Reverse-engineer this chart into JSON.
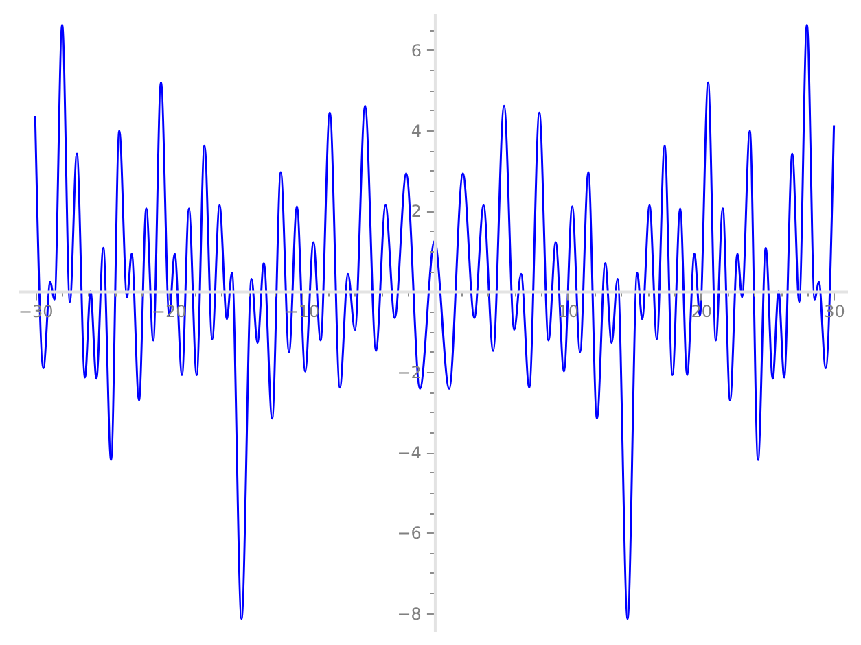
{
  "chart_data": {
    "type": "line",
    "x": [
      -30,
      -29.38,
      -28.87,
      -28.55,
      -27.97,
      -27.39,
      -26.87,
      -26.26,
      -25.84,
      -25.4,
      -24.88,
      -24.3,
      -23.68,
      -23.1,
      -22.75,
      -22.2,
      -21.65,
      -21.13,
      -20.55,
      -19.93,
      -19.52,
      -18.97,
      -18.45,
      -17.87,
      -17.28,
      -16.7,
      -16.15,
      -15.6,
      -15.22,
      -14.5,
      -13.75,
      -13.3,
      -12.82,
      -12.2,
      -11.55,
      -10.93,
      -10.34,
      -9.72,
      -9.1,
      -8.56,
      -7.87,
      -7.11,
      -6.5,
      -5.98,
      -5.22,
      -4.4,
      -3.68,
      -2.99,
      -2.13,
      -1.1,
      0,
      1.1,
      2.13,
      2.99,
      3.68,
      4.4,
      5.22,
      5.98,
      6.5,
      7.11,
      7.87,
      8.56,
      9.1,
      9.72,
      10.34,
      10.93,
      11.55,
      12.2,
      12.82,
      13.3,
      13.75,
      14.5,
      15.22,
      15.6,
      16.15,
      16.7,
      17.28,
      17.87,
      18.45,
      18.97,
      19.52,
      19.93,
      20.55,
      21.13,
      21.65,
      22.2,
      22.75,
      23.1,
      23.68,
      24.3,
      24.88,
      25.4,
      25.84,
      26.26,
      26.87,
      27.39,
      27.97,
      28.55,
      28.87,
      29.38,
      30
    ],
    "series": [
      {
        "color": "#0000ff",
        "values": [
          4.36,
          -1.91,
          0.23,
          -0.2,
          6.62,
          -0.26,
          3.42,
          -2.14,
          0.0,
          -2.17,
          1.08,
          -4.19,
          3.99,
          -0.15,
          0.94,
          -2.71,
          2.06,
          -1.22,
          5.19,
          -0.6,
          0.94,
          -2.08,
          2.06,
          -2.08,
          3.62,
          -1.19,
          2.14,
          -0.69,
          0.46,
          -8.14,
          0.31,
          -1.28,
          0.7,
          -3.16,
          2.96,
          -1.51,
          2.11,
          -1.99,
          1.22,
          -1.22,
          4.44,
          -2.39,
          0.43,
          -0.96,
          4.61,
          -1.48,
          2.14,
          -0.66,
          2.93,
          -2.42,
          1.25,
          -2.42,
          2.93,
          -0.66,
          2.14,
          -1.48,
          4.61,
          -0.96,
          0.43,
          -2.39,
          4.44,
          -1.22,
          1.22,
          -1.99,
          2.11,
          -1.51,
          2.96,
          -3.16,
          0.7,
          -1.28,
          0.31,
          -8.14,
          0.46,
          -0.69,
          2.14,
          -1.19,
          3.62,
          -2.08,
          2.06,
          -2.08,
          0.94,
          -0.6,
          5.19,
          -1.22,
          2.06,
          -2.71,
          0.94,
          -0.15,
          3.99,
          -4.19,
          1.08,
          -2.17,
          0.0,
          -2.14,
          3.42,
          -0.26,
          6.62,
          -0.2,
          0.23,
          -1.91,
          4.13
        ]
      }
    ],
    "xlim": [
      -31.3,
      31.0
    ],
    "ylim": [
      -8.45,
      6.9
    ],
    "xticks": [
      -30,
      {
        "value": -28,
        "label": null
      },
      {
        "value": -26,
        "label": null
      },
      {
        "value": -24,
        "label": null
      },
      {
        "value": -22,
        "label": null
      },
      -20,
      {
        "value": -18,
        "label": null
      },
      {
        "value": -16,
        "label": null
      },
      {
        "value": -14,
        "label": null
      },
      {
        "value": -12,
        "label": null
      },
      -10,
      {
        "value": -8,
        "label": null
      },
      {
        "value": -6,
        "label": null
      },
      {
        "value": -4,
        "label": null
      },
      {
        "value": -2,
        "label": null
      },
      {
        "value": 2,
        "label": null
      },
      {
        "value": 4,
        "label": null
      },
      {
        "value": 6,
        "label": null
      },
      {
        "value": 8,
        "label": null
      },
      10,
      {
        "value": 12,
        "label": null
      },
      {
        "value": 14,
        "label": null
      },
      {
        "value": 16,
        "label": null
      },
      {
        "value": 18,
        "label": null
      },
      20,
      {
        "value": 22,
        "label": null
      },
      {
        "value": 24,
        "label": null
      },
      {
        "value": 26,
        "label": null
      },
      {
        "value": 28,
        "label": null
      },
      30
    ],
    "yticks": [
      -8,
      {
        "value": -7.5,
        "label": null
      },
      {
        "value": -7,
        "label": null
      },
      {
        "value": -6.5,
        "label": null
      },
      -6,
      {
        "value": -5.5,
        "label": null
      },
      {
        "value": -5,
        "label": null
      },
      {
        "value": -4.5,
        "label": null
      },
      -4,
      {
        "value": -3.5,
        "label": null
      },
      {
        "value": -3,
        "label": null
      },
      {
        "value": -2.5,
        "label": null
      },
      -2,
      {
        "value": -1.5,
        "label": null
      },
      {
        "value": -1,
        "label": null
      },
      {
        "value": -0.5,
        "label": null
      },
      {
        "value": 0.5,
        "label": null
      },
      {
        "value": 1,
        "label": null
      },
      {
        "value": 1.5,
        "label": null
      },
      2,
      {
        "value": 2.5,
        "label": null
      },
      {
        "value": 3,
        "label": null
      },
      {
        "value": 3.5,
        "label": null
      },
      4,
      {
        "value": 4.5,
        "label": null
      },
      {
        "value": 5,
        "label": null
      },
      {
        "value": 5.5,
        "label": null
      },
      6,
      {
        "value": 6.5,
        "label": null
      }
    ]
  }
}
